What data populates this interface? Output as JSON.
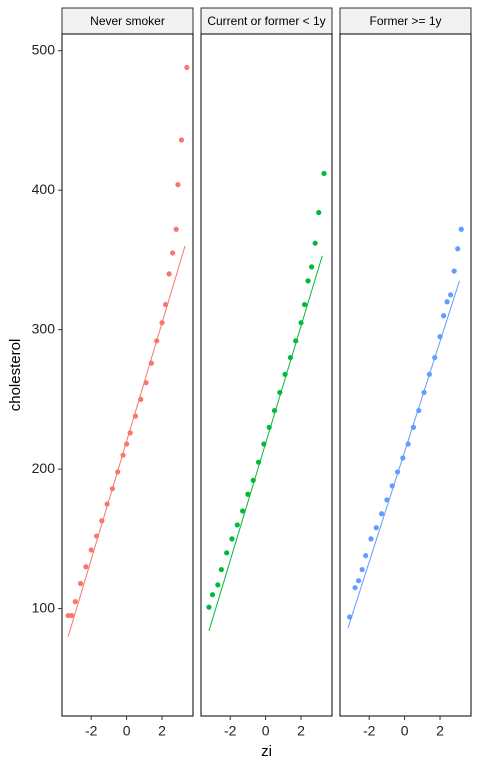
{
  "chart_data": [
    {
      "type": "scatter",
      "title": "Never smoker",
      "ylabel": "cholesterol",
      "color": "#F8766D",
      "xlim": [
        -3.65,
        3.75
      ],
      "ylim": [
        23,
        512
      ],
      "xticks": [
        -2,
        0,
        2
      ],
      "yticks": [
        100,
        200,
        300,
        400,
        500
      ],
      "x": [
        -3.3,
        -3.1,
        -2.9,
        -2.6,
        -2.3,
        -2.0,
        -1.7,
        -1.4,
        -1.1,
        -0.8,
        -0.5,
        -0.2,
        0,
        0.2,
        0.5,
        0.8,
        1.1,
        1.4,
        1.7,
        2.0,
        2.2,
        2.4,
        2.6,
        2.8,
        2.9,
        3.1,
        3.4
      ],
      "values": [
        95,
        95,
        105,
        118,
        130,
        142,
        152,
        163,
        175,
        186,
        198,
        210,
        218,
        226,
        238,
        250,
        262,
        276,
        292,
        305,
        318,
        340,
        355,
        372,
        404,
        436,
        488
      ],
      "line": {
        "x": [
          -3.3,
          3.3
        ],
        "y": [
          80,
          360
        ]
      }
    },
    {
      "type": "scatter",
      "title": "Current or former < 1y",
      "xlabel": "zi",
      "color": "#00BA38",
      "xlim": [
        -3.65,
        3.75
      ],
      "ylim": [
        23,
        512
      ],
      "xticks": [
        -2,
        0,
        2
      ],
      "x": [
        -3.2,
        -3.0,
        -2.7,
        -2.5,
        -2.2,
        -1.9,
        -1.6,
        -1.3,
        -1.0,
        -0.7,
        -0.4,
        -0.1,
        0.2,
        0.5,
        0.8,
        1.1,
        1.4,
        1.7,
        2.0,
        2.2,
        2.4,
        2.6,
        2.8,
        3.0,
        3.3
      ],
      "values": [
        101,
        110,
        117,
        128,
        140,
        150,
        160,
        170,
        182,
        192,
        205,
        218,
        230,
        242,
        255,
        268,
        280,
        292,
        305,
        318,
        335,
        345,
        362,
        384,
        412
      ],
      "line": {
        "x": [
          -3.2,
          3.2
        ],
        "y": [
          84,
          353
        ]
      }
    },
    {
      "type": "scatter",
      "title": "Former >= 1y",
      "color": "#619CFF",
      "xlim": [
        -3.65,
        3.75
      ],
      "ylim": [
        23,
        512
      ],
      "xticks": [
        -2,
        0,
        2
      ],
      "x": [
        -3.1,
        -2.8,
        -2.6,
        -2.4,
        -2.2,
        -1.9,
        -1.6,
        -1.3,
        -1.0,
        -0.7,
        -0.4,
        -0.1,
        0.2,
        0.5,
        0.8,
        1.1,
        1.4,
        1.7,
        2.0,
        2.2,
        2.4,
        2.6,
        2.8,
        3.0,
        3.2
      ],
      "values": [
        94,
        115,
        120,
        128,
        138,
        150,
        158,
        168,
        178,
        188,
        198,
        208,
        218,
        230,
        242,
        255,
        268,
        280,
        295,
        310,
        320,
        325,
        342,
        358,
        372
      ],
      "line": {
        "x": [
          -3.2,
          3.1
        ],
        "y": [
          86,
          335
        ]
      }
    }
  ]
}
